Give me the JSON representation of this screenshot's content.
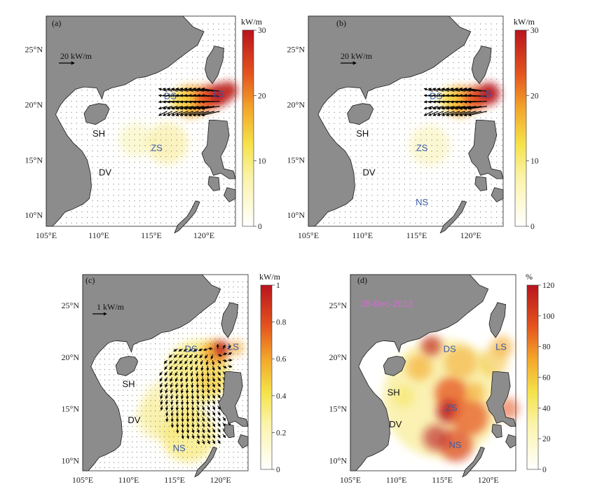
{
  "figure": {
    "lon_ticks": [
      "105°E",
      "110°E",
      "115°E",
      "120°E"
    ],
    "lat_ticks": [
      "10°N",
      "15°N",
      "20°N",
      "25°N"
    ],
    "colors": {
      "land": "#8c8c8c",
      "place_blue": "#3a5aa8",
      "place_black": "#111111",
      "date_magenta": "#d36ad3"
    },
    "panels": [
      {
        "id": "a",
        "label": "(a)",
        "scale_label": "20 kW/m",
        "colorbar": {
          "unit": "kW/m",
          "ticks": [
            "30",
            "20",
            "10",
            "0"
          ],
          "colormap": "white-yellow-red"
        },
        "places": [
          {
            "name": "DS",
            "color": "blue"
          },
          {
            "name": "LS",
            "color": "blue"
          },
          {
            "name": "SH",
            "color": "black"
          },
          {
            "name": "ZS",
            "color": "blue"
          },
          {
            "name": "DV",
            "color": "black"
          }
        ]
      },
      {
        "id": "b",
        "label": "(b)",
        "scale_label": "20 kW/m",
        "colorbar": {
          "unit": "kW/m",
          "ticks": [
            "30",
            "20",
            "10",
            "0"
          ],
          "colormap": "white-yellow-red"
        },
        "places": [
          {
            "name": "DS",
            "color": "blue"
          },
          {
            "name": "LS",
            "color": "blue"
          },
          {
            "name": "SH",
            "color": "black"
          },
          {
            "name": "ZS",
            "color": "blue"
          },
          {
            "name": "DV",
            "color": "black"
          },
          {
            "name": "NS",
            "color": "blue"
          }
        ]
      },
      {
        "id": "c",
        "label": "(c)",
        "scale_label": "1 kW/m",
        "colorbar": {
          "unit": "kW/m",
          "ticks": [
            "1",
            "0.8",
            "0.6",
            "0.4",
            "0.2",
            "0"
          ],
          "colormap": "white-yellow-red"
        },
        "places": [
          {
            "name": "DS",
            "color": "blue"
          },
          {
            "name": "LS",
            "color": "blue"
          },
          {
            "name": "SH",
            "color": "black"
          },
          {
            "name": "DV",
            "color": "black"
          },
          {
            "name": "NS",
            "color": "blue"
          }
        ]
      },
      {
        "id": "d",
        "label": "(d)",
        "date_text": "28-Dec-2013",
        "colorbar": {
          "unit": "%",
          "ticks": [
            "120",
            "100",
            "80",
            "60",
            "40",
            "20",
            "0"
          ],
          "colormap": "white-yellow-red"
        },
        "places": [
          {
            "name": "DS",
            "color": "blue"
          },
          {
            "name": "LS",
            "color": "blue"
          },
          {
            "name": "SH",
            "color": "black"
          },
          {
            "name": "ZS",
            "color": "blue"
          },
          {
            "name": "DV",
            "color": "black"
          },
          {
            "name": "NS",
            "color": "blue"
          }
        ]
      }
    ]
  }
}
